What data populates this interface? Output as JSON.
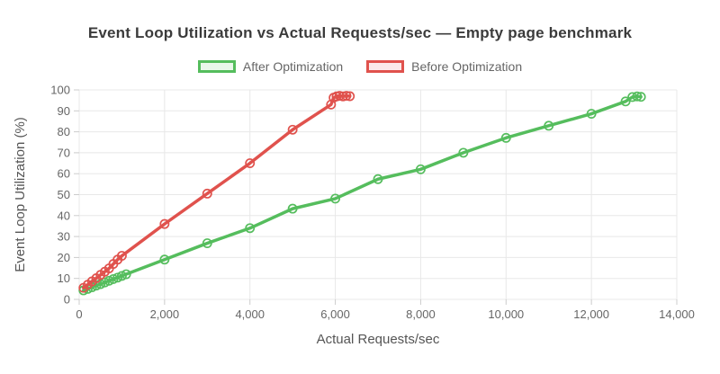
{
  "page": {
    "background": "#ffffff"
  },
  "colors": {
    "after_line": "#55bd5d",
    "after_fill": "#e9f7ea",
    "before_line": "#e0524d",
    "before_fill": "#fbe9e9",
    "title_text": "#3b3b3b",
    "axis_text": "#666666",
    "axis_title_text": "#555555",
    "grid": "#e8e8e8",
    "tick_mark": "#cccccc"
  },
  "chart_data": {
    "type": "line",
    "title": "Event Loop Utilization vs Actual Requests/sec — Empty page benchmark",
    "xlabel": "Actual Requests/sec",
    "ylabel": "Event Loop Utilization (%)",
    "xlim": [
      0,
      14000
    ],
    "ylim": [
      0,
      100
    ],
    "x_ticks": [
      0,
      2000,
      4000,
      6000,
      8000,
      10000,
      12000,
      14000
    ],
    "x_tick_labels": [
      "0",
      "2,000",
      "4,000",
      "6,000",
      "8,000",
      "10,000",
      "12,000",
      "14,000"
    ],
    "y_ticks": [
      0,
      10,
      20,
      30,
      40,
      50,
      60,
      70,
      80,
      90,
      100
    ],
    "y_tick_labels": [
      "0",
      "10",
      "20",
      "30",
      "40",
      "50",
      "60",
      "70",
      "80",
      "90",
      "100"
    ],
    "grid": true,
    "legend_position": "top",
    "series": [
      {
        "name": "After Optimization",
        "color": "#55bd5d",
        "legend_fill": "#e9f7ea",
        "points": [
          [
            100,
            4.3
          ],
          [
            200,
            5.0
          ],
          [
            300,
            5.8
          ],
          [
            400,
            6.6
          ],
          [
            500,
            7.3
          ],
          [
            600,
            8.1
          ],
          [
            700,
            8.9
          ],
          [
            800,
            9.7
          ],
          [
            900,
            10.4
          ],
          [
            1000,
            11.2
          ],
          [
            1100,
            12.0
          ],
          [
            2000,
            19.0
          ],
          [
            3000,
            26.8
          ],
          [
            4000,
            34.0
          ],
          [
            5000,
            43.3
          ],
          [
            6000,
            48.1
          ],
          [
            7000,
            57.4
          ],
          [
            8000,
            62.1
          ],
          [
            9000,
            70.0
          ],
          [
            10000,
            77.1
          ],
          [
            11000,
            82.9
          ],
          [
            12000,
            88.6
          ],
          [
            12800,
            94.5
          ],
          [
            12960,
            96.6
          ],
          [
            13070,
            96.9
          ],
          [
            13160,
            96.7
          ]
        ]
      },
      {
        "name": "Before Optimization",
        "color": "#e0524d",
        "legend_fill": "#fbe9e9",
        "points": [
          [
            100,
            5.5
          ],
          [
            200,
            7.0
          ],
          [
            300,
            8.6
          ],
          [
            400,
            10.1
          ],
          [
            500,
            11.7
          ],
          [
            600,
            13.2
          ],
          [
            700,
            14.8
          ],
          [
            800,
            16.9
          ],
          [
            900,
            19.0
          ],
          [
            1000,
            20.8
          ],
          [
            2000,
            36.0
          ],
          [
            3000,
            50.5
          ],
          [
            4000,
            65.0
          ],
          [
            5000,
            81.0
          ],
          [
            5900,
            93.0
          ],
          [
            5960,
            96.3
          ],
          [
            6030,
            96.9
          ],
          [
            6100,
            97.2
          ],
          [
            6180,
            96.9
          ],
          [
            6260,
            97.2
          ],
          [
            6340,
            97.0
          ]
        ]
      }
    ]
  }
}
